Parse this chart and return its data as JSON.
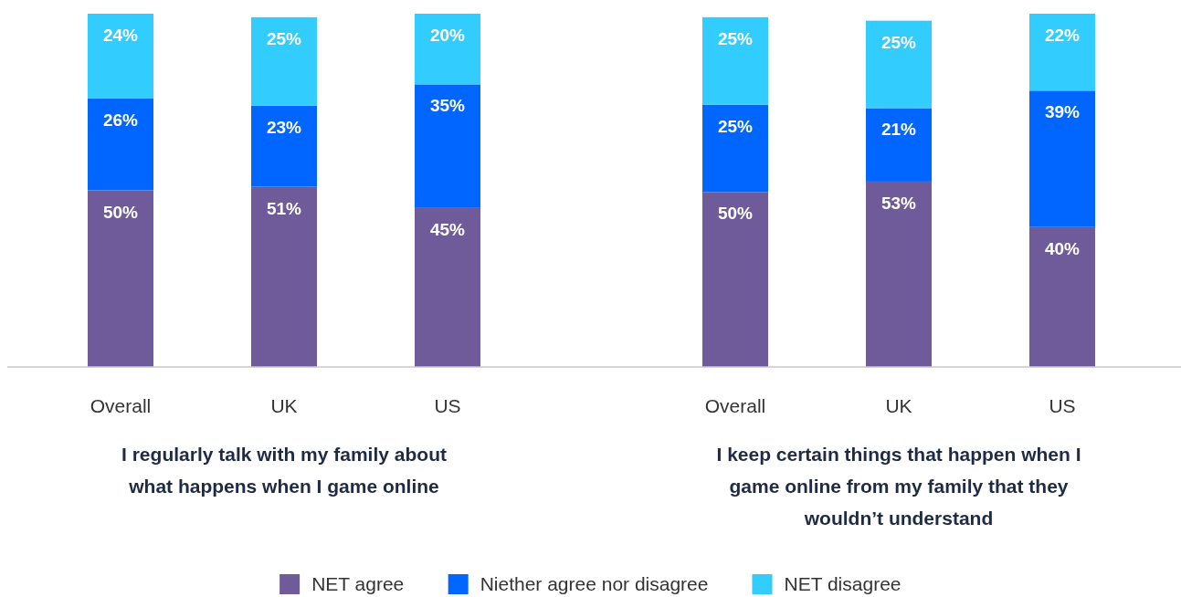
{
  "chart_data": [
    {
      "type": "bar",
      "stacked": true,
      "legend": "bottom",
      "xlabel": "I regularly talk with my family about what happens when I game online",
      "categories": [
        "Overall",
        "UK",
        "US"
      ],
      "series": [
        {
          "name": "NET agree",
          "color": "#6f5a9a",
          "values": [
            50,
            51,
            45
          ],
          "value_labels": [
            "50%",
            "51%",
            "45%"
          ]
        },
        {
          "name": "Niether agree nor disagree",
          "color": "#0066ff",
          "values": [
            26,
            23,
            35
          ],
          "value_labels": [
            "26%",
            "23%",
            "35%"
          ]
        },
        {
          "name": "NET disagree",
          "color": "#33ccff",
          "values": [
            24,
            25,
            20
          ],
          "value_labels": [
            "24%",
            "25%",
            "20%"
          ]
        }
      ]
    },
    {
      "type": "bar",
      "stacked": true,
      "xlabel": "I keep certain things that happen when I game online from my family that they wouldn’t understand",
      "categories": [
        "Overall",
        "UK",
        "US"
      ],
      "series": [
        {
          "color": "#6f5a9a",
          "values": [
            50,
            53,
            40
          ],
          "value_labels": [
            "50%",
            "53%",
            "40%"
          ]
        },
        {
          "color": "#0066ff",
          "values": [
            25,
            21,
            39
          ],
          "value_labels": [
            "25%",
            "21%",
            "39%"
          ]
        },
        {
          "color": "#33ccff",
          "values": [
            25,
            25,
            22
          ],
          "value_labels": [
            "25%",
            "25%",
            "22%"
          ]
        }
      ]
    }
  ]
}
